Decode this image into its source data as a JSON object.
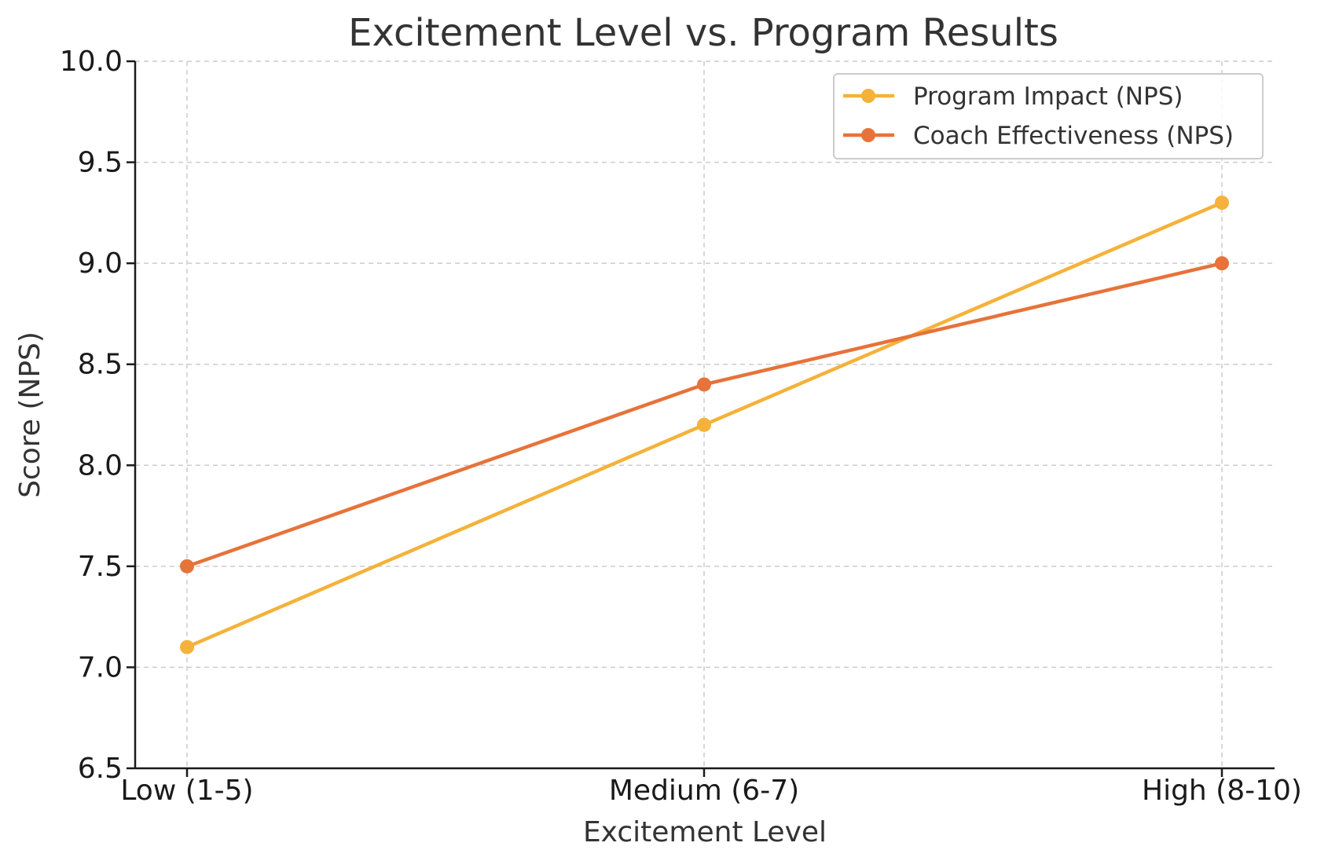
{
  "chart_data": {
    "type": "line",
    "title": "Excitement Level vs. Program Results",
    "xlabel": "Excitement Level",
    "ylabel": "Score (NPS)",
    "categories": [
      "Low (1-5)",
      "Medium (6-7)",
      "High (8-10)"
    ],
    "ylim": [
      6.5,
      10.0
    ],
    "yticks": [
      "6.5",
      "7.0",
      "7.5",
      "8.0",
      "8.5",
      "9.0",
      "9.5",
      "10.0"
    ],
    "grid": true,
    "legend_position": "top-right",
    "series": [
      {
        "name": "Program Impact (NPS)",
        "values": [
          7.1,
          8.2,
          9.3
        ],
        "color": "#F4B23A"
      },
      {
        "name": "Coach Effectiveness (NPS)",
        "values": [
          7.5,
          8.4,
          9.0
        ],
        "color": "#E6733A"
      }
    ]
  }
}
